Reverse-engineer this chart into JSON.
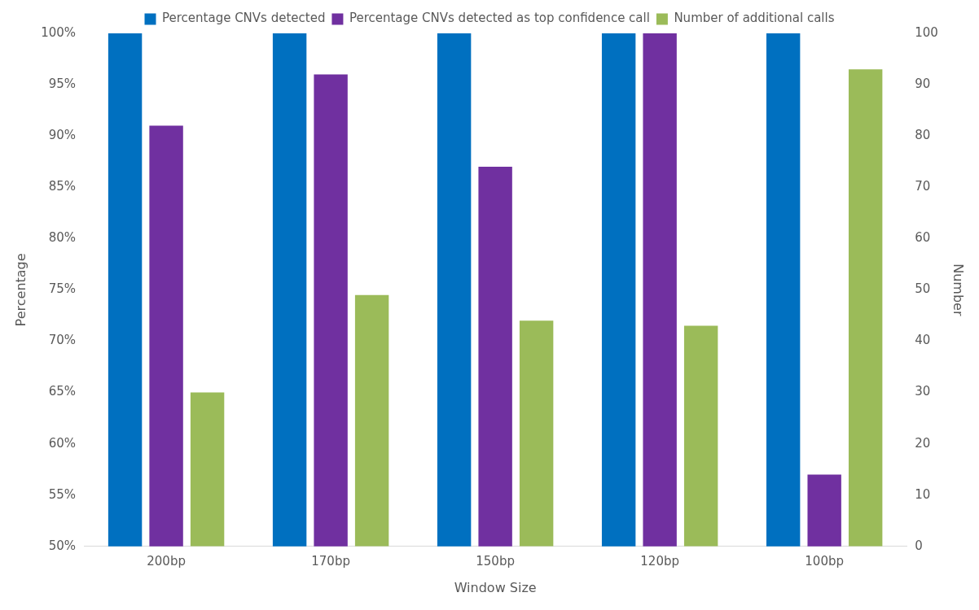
{
  "chart_data": {
    "type": "bar",
    "xlabel": "Window Size",
    "ylabel": "Percentage",
    "y2label": "Number",
    "categories": [
      "200bp",
      "170bp",
      "150bp",
      "120bp",
      "100bp"
    ],
    "series": [
      {
        "name": "Percentage CNVs detected",
        "color": "#0070c0",
        "values": [
          100,
          100,
          100,
          100,
          100
        ]
      },
      {
        "name": "Percentage CNVs detected as top confidence call",
        "color": "#7030a0",
        "values": [
          91,
          96,
          87,
          100,
          57
        ]
      },
      {
        "name": "Number of additional calls",
        "color": "#9bbb59",
        "values": [
          30,
          49,
          44,
          43,
          93
        ],
        "axis": "y2"
      }
    ],
    "ylim": [
      50,
      100
    ],
    "yticks": [
      {
        "value": 50,
        "label": "50%"
      },
      {
        "value": 55,
        "label": "55%"
      },
      {
        "value": 60,
        "label": "60%"
      },
      {
        "value": 65,
        "label": "65%"
      },
      {
        "value": 70,
        "label": "70%"
      },
      {
        "value": 75,
        "label": "75%"
      },
      {
        "value": 80,
        "label": "80%"
      },
      {
        "value": 85,
        "label": "85%"
      },
      {
        "value": 90,
        "label": "90%"
      },
      {
        "value": 95,
        "label": "95%"
      },
      {
        "value": 100,
        "label": "100%"
      }
    ],
    "y2lim": [
      0,
      100
    ],
    "y2ticks": [
      0,
      10,
      20,
      30,
      40,
      50,
      60,
      70,
      80,
      90,
      100
    ],
    "legend": "top",
    "grid": false
  }
}
